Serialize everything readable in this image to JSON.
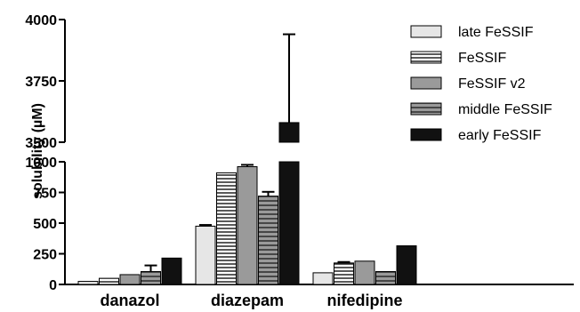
{
  "chart_data": {
    "type": "bar",
    "ylabel": "solubility (µM)",
    "categories": [
      "danazol",
      "diazepam",
      "nifedipine"
    ],
    "y_axis_break": {
      "lower_range": [
        0,
        1000
      ],
      "upper_range": [
        3500,
        4000
      ]
    },
    "y_ticks_lower": [
      "0",
      "250",
      "500",
      "750",
      "1000"
    ],
    "y_ticks_upper": [
      "3500",
      "3750",
      "4000"
    ],
    "legend_position": "top-right",
    "series": [
      {
        "name": "late FeSSIF",
        "pattern": "light-gray",
        "values": [
          25,
          475,
          95
        ],
        "errors": [
          0,
          10,
          0
        ]
      },
      {
        "name": "FeSSIF",
        "pattern": "horizontal-stripes",
        "values": [
          50,
          910,
          175
        ],
        "errors": [
          0,
          0,
          8
        ]
      },
      {
        "name": "FeSSIF v2",
        "pattern": "gray",
        "values": [
          80,
          960,
          190
        ],
        "errors": [
          0,
          15,
          0
        ]
      },
      {
        "name": "middle FeSSIF",
        "pattern": "gray-stripes",
        "values": [
          105,
          720,
          105
        ],
        "errors": [
          50,
          35,
          0
        ]
      },
      {
        "name": "early FeSSIF",
        "pattern": "black",
        "values": [
          215,
          3580,
          315
        ],
        "errors": [
          0,
          360,
          0
        ]
      }
    ]
  }
}
